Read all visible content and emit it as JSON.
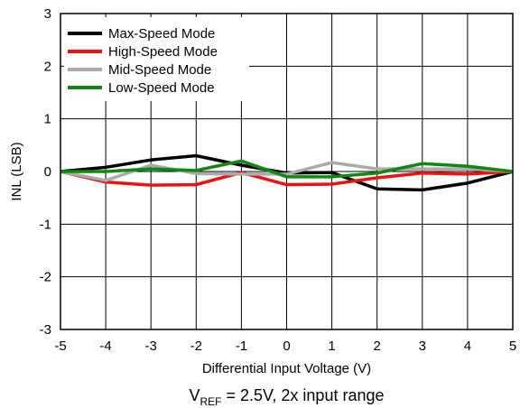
{
  "chart_data": {
    "type": "line",
    "xlabel": "Differential Input Voltage (V)",
    "ylabel": "INL (LSB)",
    "xlim": [
      -5,
      5
    ],
    "ylim": [
      -3,
      3
    ],
    "x_ticks": [
      -5,
      -4,
      -3,
      -2,
      -1,
      0,
      1,
      2,
      3,
      4,
      5
    ],
    "y_ticks": [
      -3,
      -2,
      -1,
      0,
      1,
      2,
      3
    ],
    "x_tick_labels": [
      "-5",
      "-4",
      "-3",
      "-2",
      "-1",
      "0",
      "1",
      "2",
      "3",
      "4",
      "5"
    ],
    "y_tick_labels": [
      "-3",
      "-2",
      "-1",
      "0",
      "1",
      "2",
      "3"
    ],
    "grid": true,
    "legend_position": "top-left",
    "caption": {
      "prefix": "V",
      "subscript": "REF",
      "suffix": " = 2.5V, 2x input range"
    },
    "x": [
      -5,
      -4,
      -3,
      -2,
      -1,
      0,
      1,
      2,
      3,
      4,
      5
    ],
    "series": [
      {
        "name": "Max-Speed Mode",
        "color": "#000000",
        "values": [
          0,
          0.08,
          0.22,
          0.3,
          0.12,
          -0.03,
          -0.02,
          -0.33,
          -0.35,
          -0.22,
          0
        ]
      },
      {
        "name": "High-Speed Mode",
        "color": "#ee1111",
        "values": [
          0,
          -0.2,
          -0.26,
          -0.25,
          -0.02,
          -0.25,
          -0.24,
          -0.12,
          -0.03,
          -0.05,
          0
        ]
      },
      {
        "name": "Mid-Speed Mode",
        "color": "#aaaaaa",
        "values": [
          0,
          -0.17,
          0.12,
          -0.04,
          -0.05,
          -0.05,
          0.17,
          0.05,
          0.05,
          0.05,
          0
        ]
      },
      {
        "name": "Low-Speed Mode",
        "color": "#118811",
        "values": [
          0,
          0,
          0.05,
          0.02,
          0.2,
          -0.1,
          -0.1,
          -0.03,
          0.15,
          0.1,
          0
        ]
      }
    ]
  }
}
